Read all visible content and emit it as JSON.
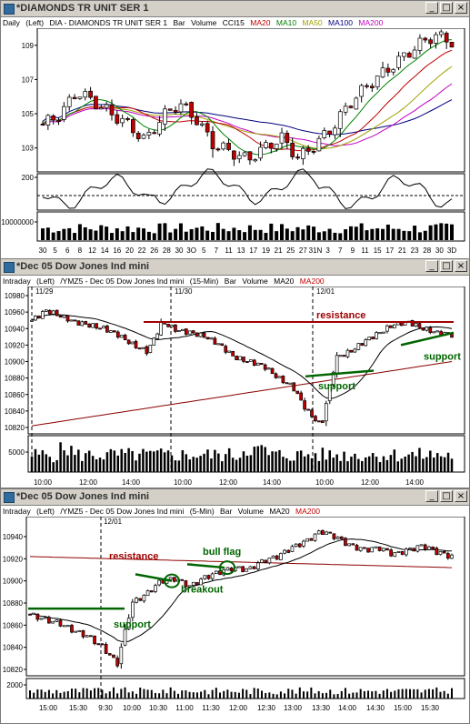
{
  "windows": [
    {
      "title": "*DIAMONDS TR UNIT SER 1",
      "legend": [
        "Daily",
        "(Left)",
        "DIA - DIAMONDS TR UNIT SER 1",
        "Bar",
        "Volume",
        "CCI15"
      ],
      "ma_legend": [
        {
          "label": "MA20",
          "color": "#c00000"
        },
        {
          "label": "MA10",
          "color": "#008000"
        },
        {
          "label": "MA50",
          "color": "#a0a000"
        },
        {
          "label": "MA100",
          "color": "#000080"
        },
        {
          "label": "MA200",
          "color": "#c000c0"
        }
      ],
      "y_ticks": [
        "109",
        "107",
        "105",
        "103"
      ],
      "cci_tick": "200",
      "vol_tick": "10000000",
      "x_ticks": [
        "30",
        "5",
        "6",
        "8",
        "12",
        "14",
        "16",
        "20",
        "22",
        "26",
        "28",
        "30",
        "3O",
        "5",
        "7",
        "11",
        "13",
        "17",
        "19",
        "21",
        "25",
        "27",
        "31N",
        "3",
        "7",
        "9",
        "11",
        "15",
        "17",
        "21",
        "23",
        "28",
        "30",
        "3D"
      ]
    },
    {
      "title": "*Dec 05  Dow Jones Ind mini",
      "legend": [
        "Intraday",
        "(Left)",
        "/YMZ5 - Dec 05  Dow Jones Ind mini",
        "(15-Min)",
        "Bar",
        "Volume"
      ],
      "ma_legend": [
        {
          "label": "MA20",
          "color": "#000000"
        },
        {
          "label": "MA200",
          "color": "#c00000"
        }
      ],
      "date_labels": [
        "11/29",
        "11/30",
        "12/01"
      ],
      "y_ticks": [
        "10980",
        "10960",
        "10940",
        "10920",
        "10900",
        "10880",
        "10860",
        "10840",
        "10820"
      ],
      "vol_tick": "5000",
      "x_ticks": [
        "10:00",
        "12:00",
        "14:00",
        "10:00",
        "12:00",
        "14:00",
        "10:00",
        "12:00",
        "14:00"
      ],
      "annotations": {
        "resistance": "resistance",
        "support_left": "support",
        "support_right": "support"
      }
    },
    {
      "title": "*Dec 05  Dow Jones Ind mini",
      "legend": [
        "Intraday",
        "(Left)",
        "/YMZ5 - Dec 05  Dow Jones Ind mini",
        "(5-Min)",
        "Bar",
        "Volume"
      ],
      "ma_legend": [
        {
          "label": "MA20",
          "color": "#000000"
        },
        {
          "label": "MA200",
          "color": "#c00000"
        }
      ],
      "date_labels": [
        "12/01"
      ],
      "y_ticks": [
        "10940",
        "10920",
        "10900",
        "10880",
        "10860",
        "10840",
        "10820"
      ],
      "vol_tick": "2000",
      "x_ticks": [
        "15:00",
        "15:30",
        "9:30",
        "10:00",
        "10:30",
        "11:00",
        "11:30",
        "12:00",
        "12:30",
        "13:00",
        "13:30",
        "14:00",
        "14:30",
        "15:00",
        "15:30"
      ],
      "annotations": {
        "resistance": "resistance",
        "support": "support",
        "breakout": "breakout",
        "bull_flag": "bull flag"
      }
    }
  ],
  "colors": {
    "up": "#ffffff",
    "down": "#c00000",
    "annotation_red": "#a00000",
    "annotation_green": "#006400"
  }
}
